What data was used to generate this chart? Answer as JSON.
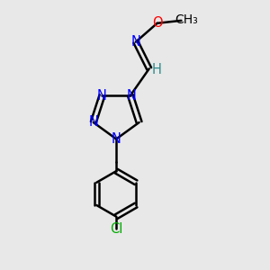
{
  "background_color": "#e8e8e8",
  "bond_color": "#000000",
  "atom_colors": {
    "N": "#0000ff",
    "O": "#ff0000",
    "Cl": "#00aa00",
    "C": "#000000",
    "H": "#2e8b8b"
  },
  "figsize": [
    3.0,
    3.0
  ],
  "dpi": 100
}
